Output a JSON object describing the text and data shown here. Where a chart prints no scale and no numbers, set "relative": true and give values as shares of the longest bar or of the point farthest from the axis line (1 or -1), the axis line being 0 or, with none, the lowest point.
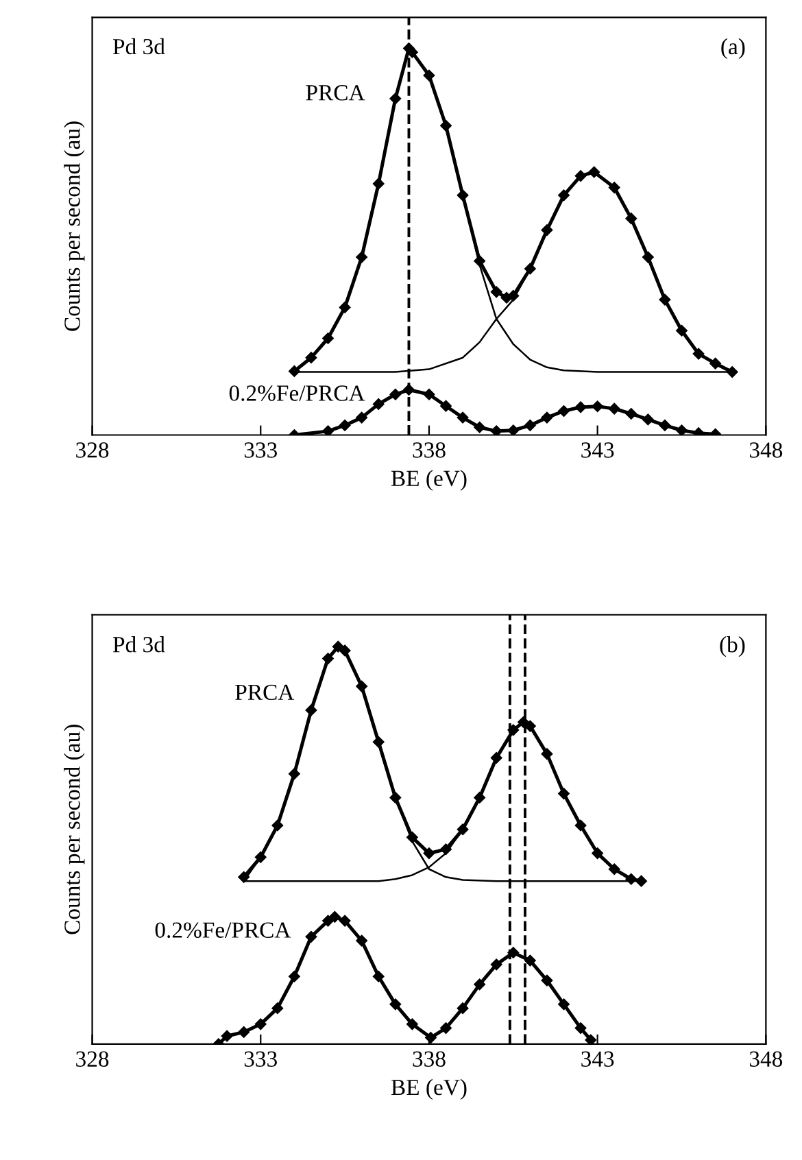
{
  "chart_data": [
    {
      "type": "line",
      "relative": true,
      "xlabel": "BE (eV)",
      "ylabel": "Counts per second (au)",
      "annotations": [
        "Pd 3d",
        "(a)"
      ],
      "xlim": [
        328,
        348
      ],
      "xticks": [
        328,
        333,
        338,
        343,
        348
      ],
      "tick_labels": "x",
      "grid": false,
      "legend": false,
      "ref_lines": [
        {
          "axis": "x",
          "value": 337.4,
          "line_style": "dashed",
          "color": "#000000"
        }
      ],
      "series": [
        {
          "name": "PRCA",
          "color": "#000000",
          "marker": "diamond",
          "x": [
            334,
            334.5,
            335,
            335.5,
            336,
            336.5,
            337,
            337.4,
            337.5,
            338,
            338.5,
            339,
            339.5,
            340,
            340.3,
            340.5,
            341,
            341.5,
            342,
            342.5,
            342.9,
            343.5,
            344,
            344.5,
            345,
            345.5,
            346,
            346.5,
            347
          ],
          "values": [
            0.165,
            0.2,
            0.25,
            0.33,
            0.46,
            0.65,
            0.87,
            1.0,
            0.99,
            0.93,
            0.8,
            0.62,
            0.45,
            0.37,
            0.355,
            0.36,
            0.43,
            0.53,
            0.62,
            0.67,
            0.68,
            0.64,
            0.56,
            0.46,
            0.35,
            0.27,
            0.21,
            0.185,
            0.163
          ]
        },
        {
          "color": "#000000",
          "marker": "none",
          "x": [
            334,
            334.5,
            335,
            335.5,
            336,
            336.5,
            337,
            337.4,
            337.5,
            338,
            338.5,
            339,
            339.5,
            340,
            340.5,
            341,
            341.5,
            342,
            343,
            347
          ],
          "values": [
            0.165,
            0.2,
            0.25,
            0.33,
            0.46,
            0.65,
            0.87,
            1.0,
            0.99,
            0.93,
            0.8,
            0.62,
            0.44,
            0.3,
            0.235,
            0.195,
            0.175,
            0.167,
            0.163,
            0.163
          ]
        },
        {
          "color": "#000000",
          "marker": "none",
          "x": [
            334,
            337,
            338,
            339,
            339.5,
            340,
            340.5,
            341,
            341.5,
            342,
            342.5,
            342.9,
            343.5,
            344,
            344.5,
            345,
            345.5,
            346,
            346.5,
            347
          ],
          "values": [
            0.163,
            0.163,
            0.17,
            0.2,
            0.24,
            0.3,
            0.35,
            0.43,
            0.53,
            0.62,
            0.67,
            0.68,
            0.64,
            0.56,
            0.46,
            0.35,
            0.27,
            0.21,
            0.185,
            0.163
          ]
        },
        {
          "name": "0.2%Fe/PRCA",
          "color": "#000000",
          "marker": "diamond",
          "x": [
            334,
            335,
            335.5,
            336,
            336.5,
            337,
            337.4,
            338,
            338.5,
            339,
            339.5,
            340,
            340.5,
            341,
            341.5,
            342,
            342.5,
            343,
            343.5,
            344,
            344.5,
            345,
            345.5,
            346,
            346.5
          ],
          "values": [
            0.0,
            0.01,
            0.025,
            0.045,
            0.08,
            0.105,
            0.117,
            0.105,
            0.075,
            0.045,
            0.02,
            0.01,
            0.012,
            0.025,
            0.045,
            0.062,
            0.072,
            0.074,
            0.068,
            0.055,
            0.04,
            0.025,
            0.012,
            0.005,
            0.002
          ]
        }
      ]
    },
    {
      "type": "line",
      "relative": true,
      "xlabel": "BE (eV)",
      "ylabel": "Counts per second (au)",
      "annotations": [
        "Pd 3d",
        "(b)"
      ],
      "xlim": [
        328,
        348
      ],
      "xticks": [
        328,
        333,
        338,
        343,
        348
      ],
      "tick_labels": "x",
      "grid": false,
      "legend": false,
      "ref_lines": [
        {
          "axis": "x",
          "value": 340.85,
          "line_style": "dashed",
          "color": "#000000"
        },
        {
          "axis": "x",
          "value": 340.4,
          "line_style": "dashed",
          "color": "#000000"
        }
      ],
      "series": [
        {
          "name": "PRCA",
          "color": "#000000",
          "marker": "diamond",
          "x": [
            332.5,
            333,
            333.5,
            334,
            334.5,
            335,
            335.3,
            335.5,
            336,
            336.5,
            337,
            337.5,
            338,
            338.5,
            339,
            339.5,
            340,
            340.5,
            340.8,
            341,
            341.5,
            342,
            342.5,
            343,
            343.5,
            344,
            344.3
          ],
          "values": [
            0.42,
            0.47,
            0.55,
            0.68,
            0.84,
            0.97,
            1.0,
            0.99,
            0.9,
            0.76,
            0.62,
            0.52,
            0.48,
            0.49,
            0.54,
            0.62,
            0.72,
            0.79,
            0.81,
            0.8,
            0.73,
            0.63,
            0.55,
            0.48,
            0.44,
            0.415,
            0.41
          ]
        },
        {
          "color": "#000000",
          "marker": "none",
          "x": [
            332.5,
            333,
            333.5,
            334,
            334.5,
            335,
            335.3,
            335.5,
            336,
            336.5,
            337,
            337.5,
            338,
            338.5,
            339,
            340,
            344.3
          ],
          "values": [
            0.41,
            0.47,
            0.55,
            0.68,
            0.84,
            0.97,
            1.0,
            0.99,
            0.9,
            0.76,
            0.62,
            0.51,
            0.44,
            0.42,
            0.413,
            0.41,
            0.41
          ]
        },
        {
          "color": "#000000",
          "marker": "none",
          "x": [
            332.5,
            336.5,
            337,
            337.5,
            338,
            338.5,
            339,
            339.5,
            340,
            340.5,
            340.8,
            341,
            341.5,
            342,
            342.5,
            343,
            343.5,
            344,
            344.3
          ],
          "values": [
            0.41,
            0.41,
            0.415,
            0.425,
            0.445,
            0.48,
            0.54,
            0.62,
            0.72,
            0.79,
            0.81,
            0.8,
            0.73,
            0.63,
            0.55,
            0.48,
            0.44,
            0.415,
            0.41
          ]
        },
        {
          "name": "0.2%Fe/PRCA",
          "color": "#000000",
          "marker": "diamond",
          "x": [
            331.75,
            332,
            332.5,
            333,
            333.5,
            334,
            334.5,
            335,
            335.2,
            335.5,
            336,
            336.5,
            337,
            337.5,
            338.05,
            338.5,
            339,
            339.5,
            340,
            340.5,
            341,
            341.5,
            342,
            342.5,
            342.8
          ],
          "values": [
            0.0,
            0.02,
            0.03,
            0.05,
            0.09,
            0.17,
            0.27,
            0.31,
            0.32,
            0.31,
            0.26,
            0.17,
            0.1,
            0.05,
            0.016,
            0.04,
            0.09,
            0.15,
            0.2,
            0.23,
            0.21,
            0.16,
            0.1,
            0.04,
            0.01
          ]
        }
      ]
    }
  ]
}
